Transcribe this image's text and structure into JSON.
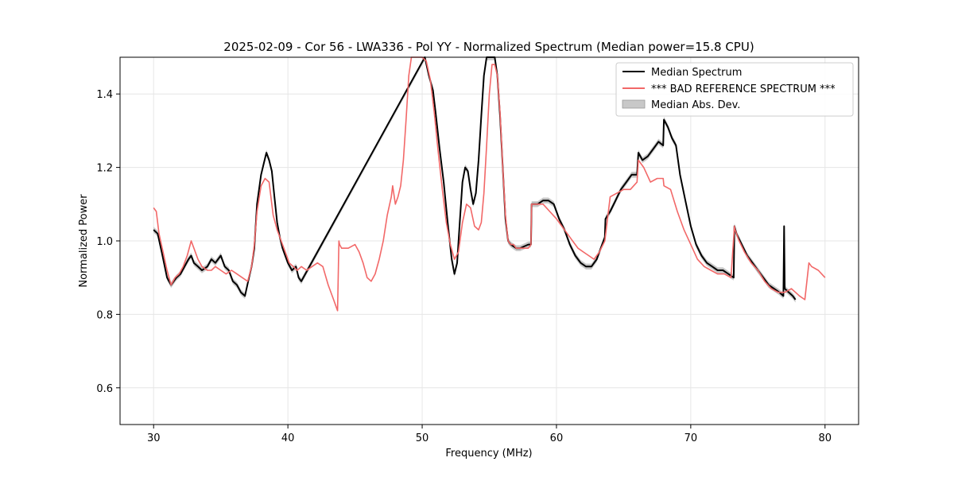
{
  "chart_data": {
    "type": "line",
    "title": "2025-02-09 - Cor 56 - LWA336 - Pol YY - Normalized Spectrum (Median power=15.8 CPU)",
    "xlabel": "Frequency (MHz)",
    "ylabel": "Normalized Power",
    "xlim": [
      27.5,
      82.5
    ],
    "ylim": [
      0.5,
      1.5
    ],
    "xticks": [
      30,
      40,
      50,
      60,
      70,
      80
    ],
    "yticks": [
      0.6,
      0.8,
      1.0,
      1.2,
      1.4
    ],
    "xtick_labels": [
      "30",
      "40",
      "50",
      "60",
      "70",
      "80"
    ],
    "ytick_labels": [
      "0.6",
      "0.8",
      "1.0",
      "1.2",
      "1.4"
    ],
    "grid": true,
    "legend_position": "top-right",
    "legend": {
      "median": "Median Spectrum",
      "reference": "*** BAD REFERENCE SPECTRUM ***",
      "mad": "Median Abs. Dev."
    },
    "colors": {
      "median": "#000000",
      "reference": "#f26868",
      "mad": "#c8c8c8"
    },
    "mad_halfwidth": 0.008,
    "series": [
      {
        "key": "median",
        "x": [
          30.0,
          30.3,
          30.6,
          31.0,
          31.3,
          31.7,
          32.0,
          32.3,
          32.6,
          32.8,
          33.0,
          33.3,
          33.6,
          34.0,
          34.3,
          34.6,
          35.0,
          35.3,
          35.6,
          35.9,
          36.2,
          36.5,
          36.8,
          37.1,
          37.3,
          37.5,
          37.7,
          38.0,
          38.2,
          38.4,
          38.6,
          38.8,
          39.0,
          39.2,
          39.4,
          39.6,
          39.8,
          40.0,
          40.3,
          40.6,
          40.8,
          41.0,
          50.2,
          50.5,
          50.8,
          51.0,
          51.3,
          51.6,
          51.9,
          52.2,
          52.4,
          52.6,
          52.8,
          53.0,
          53.2,
          53.4,
          53.6,
          53.8,
          54.0,
          54.2,
          54.4,
          54.6,
          54.8,
          55.0,
          55.2,
          55.4,
          55.6,
          55.8,
          56.0,
          56.2,
          56.4,
          56.6,
          56.8,
          57.0,
          57.3,
          57.6,
          57.9,
          58.1,
          58.15,
          58.3,
          58.6,
          59.0,
          59.4,
          59.8,
          60.2,
          60.6,
          61.0,
          61.4,
          61.8,
          62.2,
          62.6,
          63.0,
          63.3,
          63.6,
          63.65,
          64.0,
          64.4,
          64.8,
          65.2,
          65.6,
          66.0,
          66.1,
          66.4,
          66.8,
          67.2,
          67.6,
          67.95,
          68.0,
          68.3,
          68.6,
          68.9,
          69.2,
          69.6,
          70.0,
          70.4,
          70.8,
          71.2,
          71.6,
          72.0,
          72.4,
          72.8,
          73.2,
          73.25,
          73.4,
          73.8,
          74.2,
          74.6,
          75.0,
          75.4,
          75.8,
          76.2,
          76.6,
          76.9,
          76.95,
          77.0,
          77.3,
          77.6,
          77.8
        ],
        "y": [
          1.03,
          1.02,
          0.97,
          0.9,
          0.88,
          0.9,
          0.91,
          0.93,
          0.95,
          0.96,
          0.94,
          0.93,
          0.92,
          0.93,
          0.95,
          0.94,
          0.96,
          0.93,
          0.92,
          0.89,
          0.88,
          0.86,
          0.85,
          0.9,
          0.93,
          0.98,
          1.1,
          1.18,
          1.21,
          1.24,
          1.22,
          1.19,
          1.12,
          1.05,
          1.01,
          0.98,
          0.96,
          0.94,
          0.92,
          0.93,
          0.9,
          0.89,
          1.5,
          1.45,
          1.41,
          1.35,
          1.25,
          1.16,
          1.05,
          0.95,
          0.91,
          0.94,
          1.05,
          1.16,
          1.2,
          1.19,
          1.14,
          1.1,
          1.13,
          1.22,
          1.34,
          1.45,
          1.5,
          1.5,
          1.5,
          1.5,
          1.45,
          1.34,
          1.2,
          1.06,
          1.0,
          0.99,
          0.985,
          0.98,
          0.98,
          0.985,
          0.99,
          0.99,
          1.1,
          1.1,
          1.1,
          1.11,
          1.11,
          1.1,
          1.06,
          1.03,
          0.99,
          0.96,
          0.94,
          0.93,
          0.93,
          0.95,
          0.98,
          1.01,
          1.06,
          1.08,
          1.11,
          1.14,
          1.16,
          1.18,
          1.18,
          1.24,
          1.22,
          1.23,
          1.25,
          1.27,
          1.26,
          1.33,
          1.31,
          1.28,
          1.26,
          1.18,
          1.11,
          1.04,
          0.99,
          0.96,
          0.94,
          0.93,
          0.92,
          0.92,
          0.91,
          0.9,
          1.04,
          1.02,
          0.99,
          0.96,
          0.94,
          0.92,
          0.9,
          0.88,
          0.87,
          0.86,
          0.85,
          1.04,
          0.87,
          0.86,
          0.85,
          0.84
        ]
      },
      {
        "key": "reference",
        "x": [
          30.0,
          30.2,
          30.4,
          30.7,
          31.0,
          31.3,
          31.6,
          31.9,
          32.2,
          32.5,
          32.8,
          33.0,
          33.3,
          33.6,
          34.0,
          34.3,
          34.6,
          35.0,
          35.4,
          35.8,
          36.2,
          36.6,
          37.0,
          37.3,
          37.5,
          37.7,
          38.0,
          38.3,
          38.6,
          38.9,
          39.2,
          39.5,
          39.8,
          40.1,
          40.4,
          40.7,
          41.0,
          41.4,
          41.8,
          42.2,
          42.6,
          43.0,
          43.4,
          43.7,
          43.8,
          43.85,
          44.0,
          44.5,
          45.0,
          45.3,
          45.6,
          45.9,
          46.2,
          46.5,
          46.8,
          47.1,
          47.4,
          47.7,
          47.8,
          48.0,
          48.2,
          48.4,
          48.6,
          48.8,
          49.0,
          49.2,
          49.4,
          49.6,
          49.8,
          50.0,
          50.3,
          50.6,
          50.9,
          51.2,
          51.5,
          51.8,
          52.1,
          52.4,
          52.7,
          53.0,
          53.3,
          53.6,
          53.9,
          54.2,
          54.4,
          54.6,
          54.8,
          55.0,
          55.2,
          55.4,
          55.6,
          55.8,
          56.0,
          56.2,
          56.4,
          56.6,
          56.8,
          57.0,
          57.3,
          57.6,
          57.9,
          58.1,
          58.15,
          58.5,
          59.0,
          59.5,
          60.0,
          60.4,
          60.8,
          61.2,
          61.6,
          62.0,
          62.4,
          62.8,
          63.2,
          63.6,
          64.0,
          64.5,
          65.0,
          65.5,
          66.0,
          66.1,
          66.5,
          67.0,
          67.5,
          67.95,
          68.0,
          68.5,
          69.0,
          69.5,
          70.0,
          70.5,
          71.0,
          71.5,
          72.0,
          72.5,
          73.0,
          73.25,
          73.3,
          73.6,
          74.0,
          74.5,
          75.0,
          75.5,
          76.0,
          76.5,
          77.0,
          77.5,
          77.8,
          78.1,
          78.5,
          78.8,
          79.0,
          79.5,
          80.0
        ],
        "y": [
          1.09,
          1.08,
          1.02,
          0.97,
          0.92,
          0.88,
          0.9,
          0.91,
          0.93,
          0.96,
          1.0,
          0.98,
          0.95,
          0.93,
          0.92,
          0.92,
          0.93,
          0.92,
          0.91,
          0.92,
          0.91,
          0.9,
          0.89,
          0.93,
          0.99,
          1.08,
          1.15,
          1.17,
          1.16,
          1.07,
          1.03,
          1.0,
          0.97,
          0.94,
          0.93,
          0.92,
          0.93,
          0.92,
          0.93,
          0.94,
          0.93,
          0.88,
          0.84,
          0.81,
          1.0,
          0.99,
          0.98,
          0.98,
          0.99,
          0.97,
          0.94,
          0.9,
          0.89,
          0.91,
          0.95,
          1.0,
          1.07,
          1.12,
          1.15,
          1.1,
          1.12,
          1.15,
          1.22,
          1.33,
          1.45,
          1.5,
          1.5,
          1.5,
          1.5,
          1.5,
          1.49,
          1.44,
          1.35,
          1.24,
          1.14,
          1.05,
          0.99,
          0.95,
          0.97,
          1.05,
          1.1,
          1.09,
          1.04,
          1.03,
          1.05,
          1.13,
          1.26,
          1.4,
          1.48,
          1.48,
          1.45,
          1.35,
          1.2,
          1.07,
          1.0,
          0.99,
          0.99,
          0.98,
          0.98,
          0.98,
          0.98,
          0.99,
          1.1,
          1.1,
          1.1,
          1.08,
          1.06,
          1.04,
          1.02,
          1.0,
          0.98,
          0.97,
          0.96,
          0.95,
          0.97,
          1.0,
          1.12,
          1.13,
          1.14,
          1.14,
          1.16,
          1.22,
          1.2,
          1.16,
          1.17,
          1.17,
          1.15,
          1.14,
          1.08,
          1.03,
          0.99,
          0.95,
          0.93,
          0.92,
          0.91,
          0.91,
          0.9,
          1.04,
          1.03,
          1.0,
          0.97,
          0.94,
          0.92,
          0.89,
          0.87,
          0.86,
          0.86,
          0.87,
          0.86,
          0.85,
          0.84,
          0.94,
          0.93,
          0.92,
          0.9
        ]
      }
    ]
  }
}
